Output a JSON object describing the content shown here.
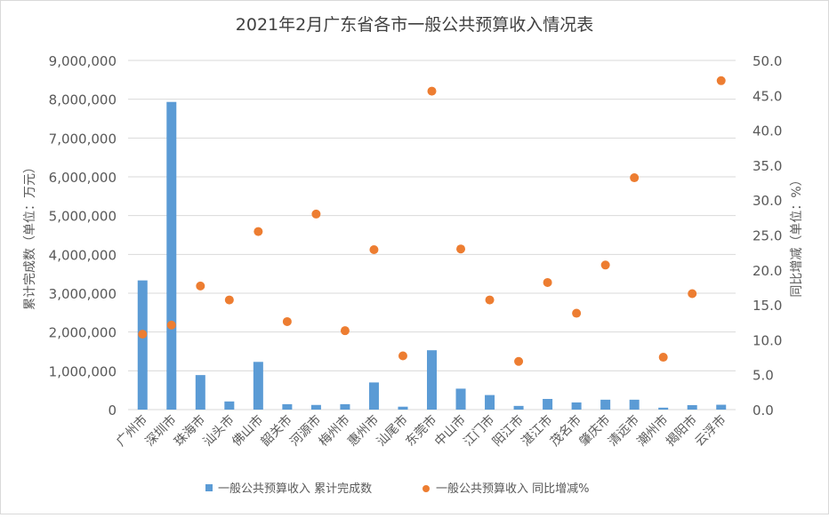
{
  "chart_data": {
    "type": "bar",
    "title": "2021年2月广东省各市一般公共预算收入情况表",
    "categories": [
      "广州市",
      "深圳市",
      "珠海市",
      "汕头市",
      "佛山市",
      "韶关市",
      "河源市",
      "梅州市",
      "惠州市",
      "汕尾市",
      "东莞市",
      "中山市",
      "江门市",
      "阳江市",
      "湛江市",
      "茂名市",
      "肇庆市",
      "清远市",
      "潮州市",
      "揭阳市",
      "云浮市"
    ],
    "series": [
      {
        "name": "一般公共预算收入 累计完成数",
        "type": "bar",
        "axis": "left",
        "color": "#5b9bd5",
        "values": [
          3330000,
          7930000,
          890000,
          210000,
          1230000,
          140000,
          120000,
          140000,
          700000,
          75000,
          1530000,
          540000,
          375000,
          95000,
          275000,
          185000,
          255000,
          255000,
          50000,
          115000,
          125000
        ]
      },
      {
        "name": "一般公共预算收入 同比增减%",
        "type": "scatter",
        "axis": "right",
        "color": "#ed7d31",
        "values": [
          10.8,
          12.1,
          17.7,
          15.7,
          25.5,
          12.6,
          28.0,
          11.3,
          22.9,
          7.7,
          45.6,
          23.0,
          15.7,
          6.9,
          18.2,
          13.8,
          20.7,
          33.2,
          7.5,
          16.6,
          47.1
        ]
      }
    ],
    "ylabel": "累计完成数（单位：万元）",
    "y2label": "同比增减（单位：%）",
    "ylim": [
      0,
      9000000
    ],
    "y2lim": [
      0,
      50
    ],
    "yticks": [
      "0",
      "1,000,000",
      "2,000,000",
      "3,000,000",
      "4,000,000",
      "5,000,000",
      "6,000,000",
      "7,000,000",
      "8,000,000",
      "9,000,000"
    ],
    "y2ticks": [
      "0.0",
      "5.0",
      "10.0",
      "15.0",
      "20.0",
      "25.0",
      "30.0",
      "35.0",
      "40.0",
      "45.0",
      "50.0"
    ],
    "grid": true,
    "legend_position": "bottom"
  }
}
